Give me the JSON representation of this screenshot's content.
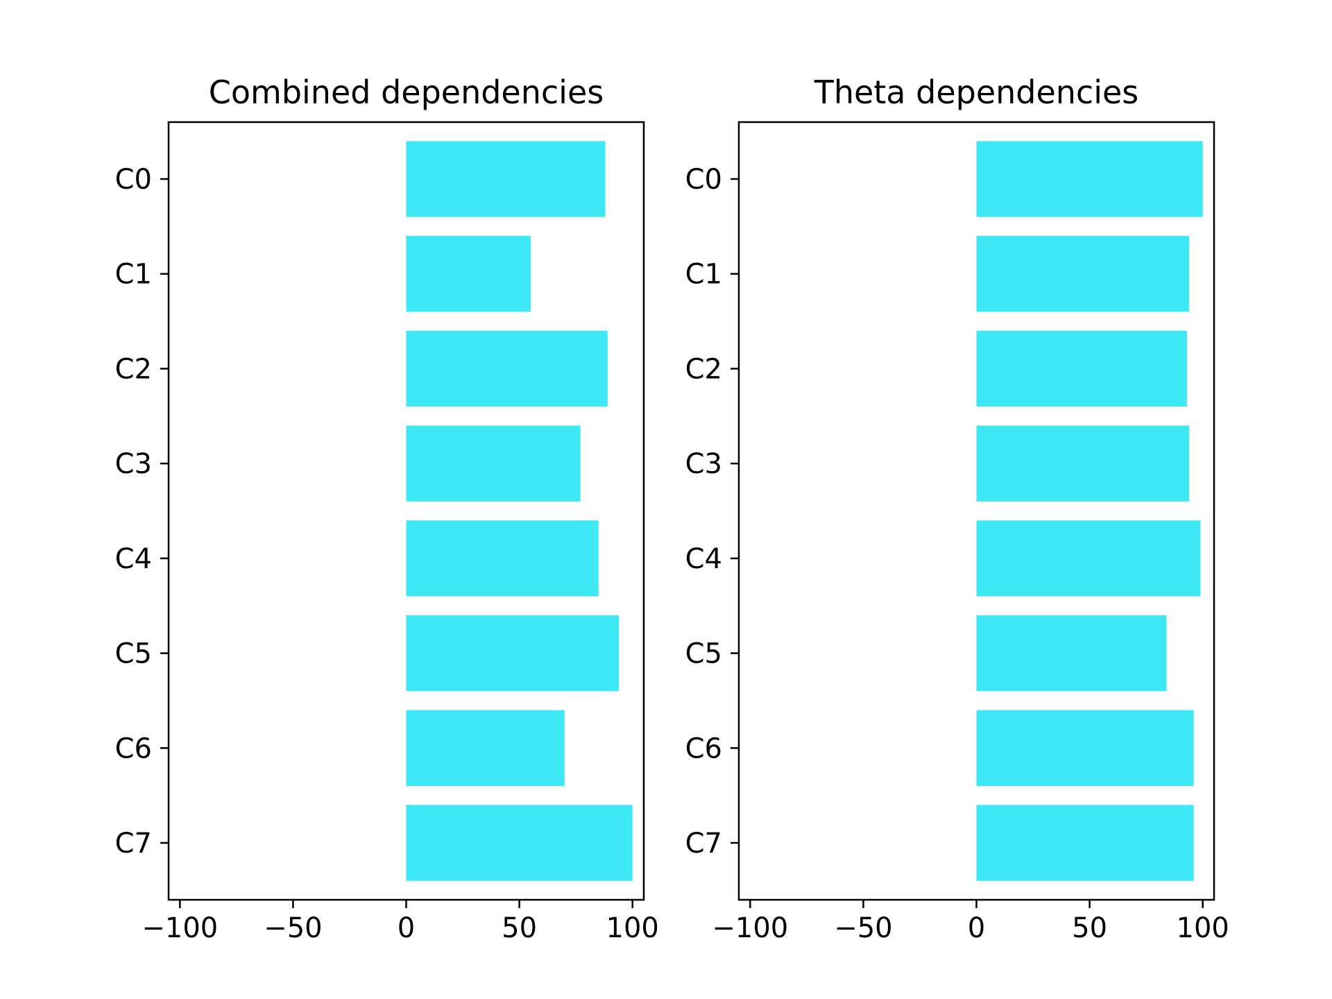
{
  "chart_data": [
    {
      "type": "bar",
      "orientation": "horizontal",
      "title": "Combined dependencies",
      "xlabel": "",
      "ylabel": "",
      "categories": [
        "C0",
        "C1",
        "C2",
        "C3",
        "C4",
        "C5",
        "C6",
        "C7"
      ],
      "values": [
        88,
        55,
        89,
        77,
        85,
        94,
        70,
        100
      ],
      "xlim": [
        -105,
        105
      ],
      "xticks": [
        -100,
        -50,
        0,
        50,
        100
      ],
      "xtick_labels": [
        "−100",
        "−50",
        "0",
        "50",
        "100"
      ],
      "grid": false,
      "bar_color": "#3ee8f5"
    },
    {
      "type": "bar",
      "orientation": "horizontal",
      "title": "Theta dependencies",
      "xlabel": "",
      "ylabel": "",
      "categories": [
        "C0",
        "C1",
        "C2",
        "C3",
        "C4",
        "C5",
        "C6",
        "C7"
      ],
      "values": [
        100,
        94,
        93,
        94,
        99,
        84,
        96,
        96
      ],
      "xlim": [
        -105,
        105
      ],
      "xticks": [
        -100,
        -50,
        0,
        50,
        100
      ],
      "xtick_labels": [
        "−100",
        "−50",
        "0",
        "50",
        "100"
      ],
      "grid": false,
      "bar_color": "#3ee8f5"
    }
  ]
}
